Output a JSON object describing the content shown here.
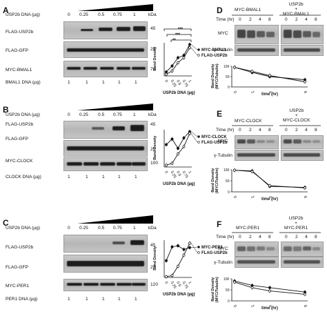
{
  "panels": {
    "A": {
      "letter": "A",
      "dna_row_label": "USP2b DNA (µg)",
      "doses": [
        "0",
        "0.25",
        "0.5",
        "0.75",
        "1"
      ],
      "kda_header": "kDa",
      "blots": [
        {
          "label": "FLAG-USP2b",
          "kda": "45"
        },
        {
          "label": "FLAG-GFP",
          "kda": "25"
        },
        {
          "label": "MYC-BMAL1",
          "kda": "70"
        }
      ],
      "bottom_row_label": "BMAL1 DNA (µg)",
      "bottom_values": [
        "1",
        "1",
        "1",
        "1",
        "1"
      ],
      "significance": [
        "***",
        "***",
        "**"
      ]
    },
    "B": {
      "letter": "B",
      "dna_row_label": "USP2b DNA (µg)",
      "doses": [
        "0",
        "0.25",
        "0.5",
        "0.75",
        "1"
      ],
      "kda_header": "kDa",
      "blots": [
        {
          "label": "FLAG-USP2b",
          "kda": "45"
        },
        {
          "label": "FLAG-GFP",
          "kda": "25"
        },
        {
          "label": "MYC-CLOCK",
          "kda": "100"
        }
      ],
      "bottom_row_label": "CLOCK DNA (µg)",
      "bottom_values": [
        "1",
        "1",
        "1",
        "1",
        "1"
      ]
    },
    "C": {
      "letter": "C",
      "dna_row_label": "USP2b DNA (µg)",
      "doses": [
        "0",
        "0.25",
        "0.5",
        "0.75",
        "1"
      ],
      "kda_header": "kDa",
      "blots": [
        {
          "label": "FLAG-USP2b",
          "kda": "45"
        },
        {
          "label": "FLAG-GFP",
          "kda": "25"
        },
        {
          "label": "MYC-PER1",
          "kda": "120"
        }
      ],
      "bottom_row_label": "PER1 DNA (µg)",
      "bottom_values": [
        "1",
        "1",
        "1",
        "1",
        "1"
      ]
    },
    "D": {
      "letter": "D",
      "group_left": "MYC-BMAL1",
      "group_right": "USP2b\n+\nMYC-BMAL1",
      "time_label": "Time (hr)",
      "times": [
        "0",
        "2",
        "4",
        "8",
        "0",
        "2",
        "4",
        "8"
      ],
      "blots": [
        "MYC",
        "γ-Tubulin"
      ]
    },
    "E": {
      "letter": "E",
      "group_left": "MYC-CLOCK",
      "group_right": "USP2b\n+\nMYC-CLOCK",
      "time_label": "Time (hr)",
      "times": [
        "0",
        "2",
        "4",
        "8",
        "0",
        "2",
        "4",
        "8"
      ],
      "blots": [
        "MYC",
        "γ-Tubulin"
      ]
    },
    "F": {
      "letter": "F",
      "group_left": "MYC-PER1",
      "group_right": "USP2b\n+\nMYC-PER1",
      "time_label": "Time (hr)",
      "times": [
        "0",
        "2",
        "4",
        "8",
        "0",
        "2",
        "4",
        "8"
      ],
      "blots": [
        "MYC",
        "γ-Tubulin"
      ]
    }
  },
  "chart_data": [
    {
      "id": "A-chart",
      "type": "line",
      "ylabel": "Band Density",
      "xlabel": "USP2b DNA (µg)",
      "categories": [
        "0",
        "0.25",
        "0.5",
        "0.75",
        "1"
      ],
      "series": [
        {
          "name": "MYC-BMAL1",
          "marker": "filled-circle",
          "values": [
            0.12,
            0.3,
            0.55,
            0.62,
            0.95
          ]
        },
        {
          "name": "FLAG-USP2b",
          "marker": "open-circle",
          "values": [
            0.05,
            0.15,
            0.4,
            0.55,
            0.85
          ]
        }
      ],
      "ylim": [
        0,
        1
      ],
      "grid": false,
      "legend": "right"
    },
    {
      "id": "B-chart",
      "type": "line",
      "ylabel": "Band Density",
      "xlabel": "USP2b DNA (µg)",
      "categories": [
        "0",
        "0.25",
        "0.5",
        "0.75",
        "1"
      ],
      "series": [
        {
          "name": "MYC-CLOCK",
          "marker": "filled-circle",
          "values": [
            0.6,
            0.75,
            0.5,
            0.78,
            0.95
          ]
        },
        {
          "name": "FLAG-USP2b",
          "marker": "open-circle",
          "values": [
            0.05,
            0.1,
            0.35,
            0.55,
            0.9
          ]
        }
      ],
      "ylim": [
        0,
        1
      ],
      "grid": false,
      "legend": "right"
    },
    {
      "id": "C-chart",
      "type": "line",
      "ylabel": "Band Density",
      "xlabel": "USP2b DNA (µg)",
      "categories": [
        "0",
        "0.25",
        "0.5",
        "0.75",
        "1"
      ],
      "series": [
        {
          "name": "MYC-PER1",
          "marker": "filled-circle",
          "values": [
            0.45,
            0.82,
            0.85,
            0.75,
            0.8
          ]
        },
        {
          "name": "FLAG-USP2b",
          "marker": "open-circle",
          "values": [
            0.02,
            0.05,
            0.3,
            0.6,
            0.92
          ]
        }
      ],
      "ylim": [
        0,
        1
      ],
      "grid": false,
      "legend": "right"
    },
    {
      "id": "D-chart",
      "type": "line",
      "ylabel": "Band Density\n(MYC/Tubulin)",
      "xlabel": "time (hr)",
      "x": [
        0,
        2,
        4,
        8
      ],
      "xticks": [
        "0",
        "2",
        "4",
        "8"
      ],
      "yticks": [
        "0",
        "50",
        "100"
      ],
      "series": [
        {
          "name": "MYC-BMAL1",
          "marker": "filled-circle",
          "values": [
            95,
            70,
            50,
            35
          ]
        },
        {
          "name": "USP2b + MYC-BMAL1",
          "marker": "open-circle",
          "values": [
            95,
            75,
            55,
            25
          ]
        }
      ],
      "ylim": [
        0,
        100
      ],
      "grid": false
    },
    {
      "id": "E-chart",
      "type": "line",
      "ylabel": "Band Density\n(MYC/Tubulin)",
      "xlabel": "time (hr)",
      "x": [
        0,
        2,
        4,
        8
      ],
      "xticks": [
        "0",
        "2",
        "4",
        "8"
      ],
      "yticks": [
        "0",
        "50",
        "100"
      ],
      "series": [
        {
          "name": "MYC-CLOCK",
          "marker": "filled-circle",
          "values": [
            98,
            95,
            25,
            20
          ]
        },
        {
          "name": "USP2b + MYC-CLOCK",
          "marker": "open-circle",
          "values": [
            98,
            92,
            28,
            18
          ]
        }
      ],
      "ylim": [
        0,
        100
      ],
      "grid": false
    },
    {
      "id": "F-chart",
      "type": "line",
      "ylabel": "Band Density\n(MYC/Tubulin)",
      "xlabel": "time (hr)",
      "x": [
        0,
        2,
        4,
        8
      ],
      "xticks": [
        "0",
        "2",
        "4",
        "8"
      ],
      "yticks": [
        "0",
        "50",
        "100"
      ],
      "series": [
        {
          "name": "MYC-PER1",
          "marker": "filled-circle",
          "values": [
            90,
            70,
            60,
            40
          ]
        },
        {
          "name": "USP2b + MYC-PER1",
          "marker": "open-circle",
          "values": [
            85,
            60,
            45,
            30
          ]
        }
      ],
      "ylim": [
        0,
        100
      ],
      "grid": false
    }
  ]
}
